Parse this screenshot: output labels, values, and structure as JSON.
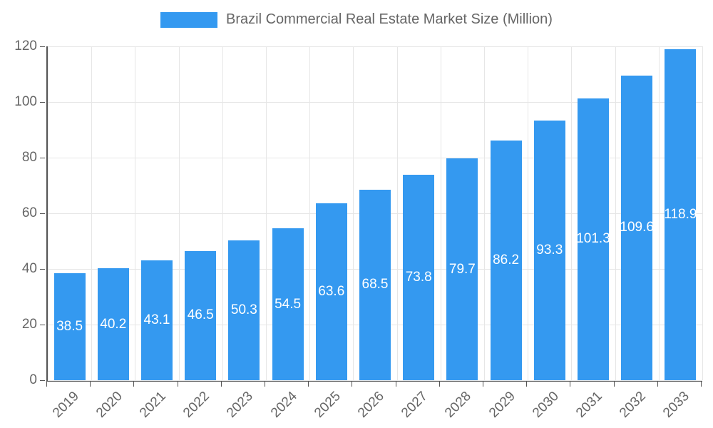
{
  "chart_data": {
    "type": "bar",
    "title": "Brazil Commercial Real Estate Market Size (Million)",
    "categories": [
      "2019",
      "2020",
      "2021",
      "2022",
      "2023",
      "2024",
      "2025",
      "2026",
      "2027",
      "2028",
      "2029",
      "2030",
      "2031",
      "2032",
      "2033"
    ],
    "series": [
      {
        "name": "Brazil Commercial Real Estate Market Size (Million)",
        "values": [
          38.5,
          40.2,
          43.1,
          46.5,
          50.3,
          54.5,
          63.6,
          68.5,
          73.8,
          79.7,
          86.2,
          93.3,
          101.3,
          109.6,
          118.9
        ]
      }
    ],
    "xlabel": "",
    "ylabel": "",
    "ylim": [
      0,
      120
    ],
    "ytick_step": 20,
    "yticks": [
      0,
      20,
      40,
      60,
      80,
      100,
      120
    ],
    "grid": true,
    "legend_position": "top",
    "value_label_style": "white, one decimal, centered inside bar",
    "colors": {
      "bar": "#3499f0",
      "tick_text": "#666666",
      "title_text": "#666666",
      "grid": "#e6e6e6",
      "axis": "#555555",
      "value_label": "#ffffff",
      "background": "#ffffff"
    }
  }
}
